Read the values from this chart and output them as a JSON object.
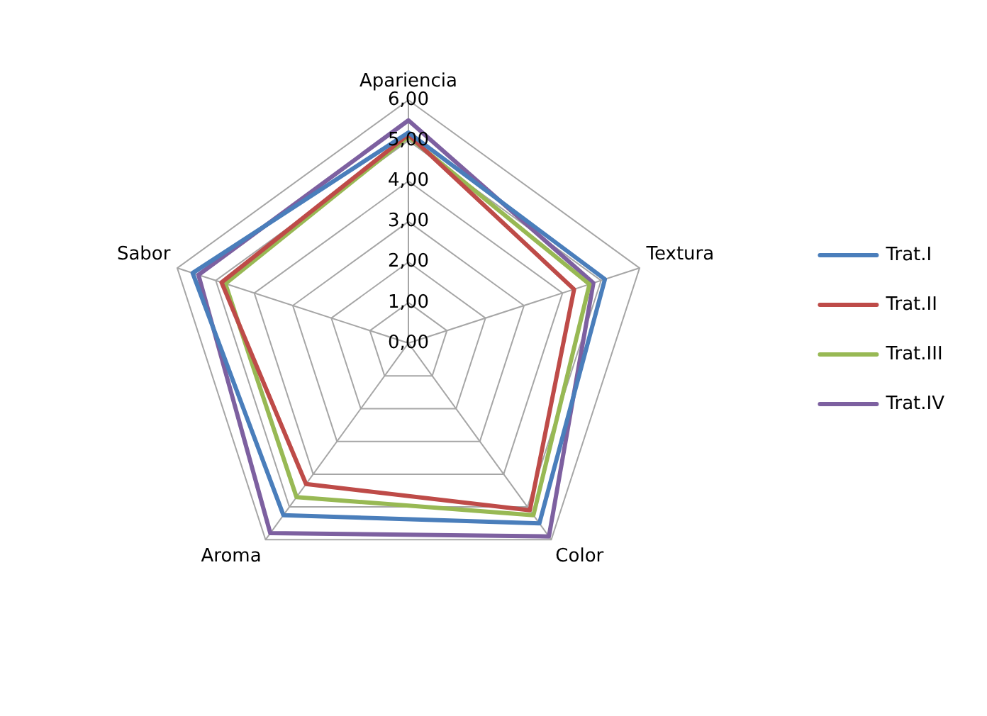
{
  "chart_data": {
    "type": "radar",
    "categories": [
      "Apariencia",
      "Textura",
      "Color",
      "Aroma",
      "Sabor"
    ],
    "series": [
      {
        "name": "Trat.I",
        "color": "#4a7ebb",
        "values": [
          5.2,
          5.1,
          5.5,
          5.25,
          5.6
        ]
      },
      {
        "name": "Trat.II",
        "color": "#be4b48",
        "values": [
          5.15,
          4.3,
          5.1,
          4.3,
          4.85
        ]
      },
      {
        "name": "Trat.III",
        "color": "#98b954",
        "values": [
          5.1,
          4.7,
          5.25,
          4.7,
          4.75
        ]
      },
      {
        "name": "Trat.IV",
        "color": "#7d60a0",
        "values": [
          5.5,
          4.8,
          5.9,
          5.8,
          5.45
        ]
      }
    ],
    "ylim": [
      0,
      6
    ],
    "yticks": [
      {
        "value": 0,
        "label": "0,00"
      },
      {
        "value": 1,
        "label": "1,00"
      },
      {
        "value": 2,
        "label": "2,00"
      },
      {
        "value": 3,
        "label": "3,00"
      },
      {
        "value": 4,
        "label": "4,00"
      },
      {
        "value": 5,
        "label": "5,00"
      },
      {
        "value": 6,
        "label": "6,00"
      }
    ],
    "grid": true,
    "legend": "right",
    "marker": "none"
  }
}
